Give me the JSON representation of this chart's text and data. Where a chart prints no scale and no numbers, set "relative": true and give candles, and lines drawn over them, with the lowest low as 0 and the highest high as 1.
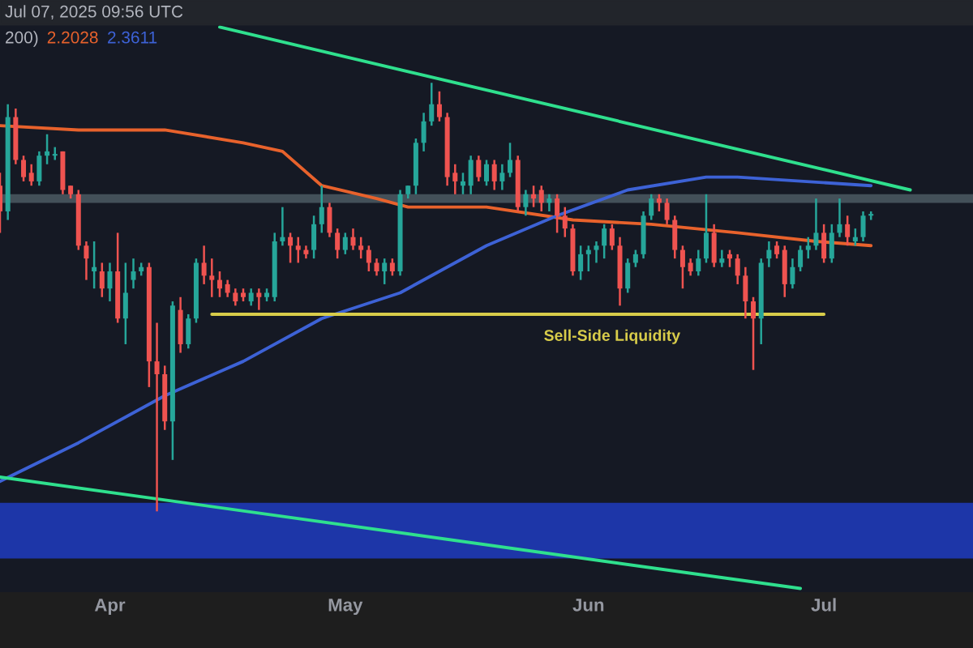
{
  "chart_data": {
    "type": "candlestick",
    "relative": true,
    "x": [
      "2025-03-18",
      "2025-03-19",
      "2025-03-20",
      "2025-03-21",
      "2025-03-22",
      "2025-03-23",
      "2025-03-24",
      "2025-03-25",
      "2025-03-26",
      "2025-03-27",
      "2025-03-28",
      "2025-03-29",
      "2025-03-30",
      "2025-03-31",
      "2025-04-01",
      "2025-04-02",
      "2025-04-03",
      "2025-04-04",
      "2025-04-05",
      "2025-04-06",
      "2025-04-07",
      "2025-04-08",
      "2025-04-09",
      "2025-04-10",
      "2025-04-11",
      "2025-04-12",
      "2025-04-13",
      "2025-04-14",
      "2025-04-15",
      "2025-04-16",
      "2025-04-17",
      "2025-04-18",
      "2025-04-19",
      "2025-04-20",
      "2025-04-21",
      "2025-04-22",
      "2025-04-23",
      "2025-04-24",
      "2025-04-25",
      "2025-04-26",
      "2025-04-27",
      "2025-04-28",
      "2025-04-29",
      "2025-04-30",
      "2025-05-01",
      "2025-05-02",
      "2025-05-03",
      "2025-05-04",
      "2025-05-05",
      "2025-05-06",
      "2025-05-07",
      "2025-05-08",
      "2025-05-09",
      "2025-05-10",
      "2025-05-11",
      "2025-05-12",
      "2025-05-13",
      "2025-05-14",
      "2025-05-15",
      "2025-05-16",
      "2025-05-17",
      "2025-05-18",
      "2025-05-19",
      "2025-05-20",
      "2025-05-21",
      "2025-05-22",
      "2025-05-23",
      "2025-05-24",
      "2025-05-25",
      "2025-05-26",
      "2025-05-27",
      "2025-05-28",
      "2025-05-29",
      "2025-05-30",
      "2025-05-31",
      "2025-06-01",
      "2025-06-02",
      "2025-06-03",
      "2025-06-04",
      "2025-06-05",
      "2025-06-06",
      "2025-06-07",
      "2025-06-08",
      "2025-06-09",
      "2025-06-10",
      "2025-06-11",
      "2025-06-12",
      "2025-06-13",
      "2025-06-14",
      "2025-06-15",
      "2025-06-16",
      "2025-06-17",
      "2025-06-18",
      "2025-06-19",
      "2025-06-20",
      "2025-06-21",
      "2025-06-22",
      "2025-06-23",
      "2025-06-24",
      "2025-06-25",
      "2025-06-26",
      "2025-06-27",
      "2025-06-28",
      "2025-06-29",
      "2025-06-30",
      "2025-07-01",
      "2025-07-02",
      "2025-07-03",
      "2025-07-04",
      "2025-07-05",
      "2025-07-06",
      "2025-07-07"
    ],
    "ohlc": [
      [
        0.76,
        0.79,
        0.65,
        0.7
      ],
      [
        0.7,
        0.95,
        0.68,
        0.92
      ],
      [
        0.92,
        0.94,
        0.81,
        0.82
      ],
      [
        0.82,
        0.83,
        0.77,
        0.78
      ],
      [
        0.79,
        0.81,
        0.76,
        0.77
      ],
      [
        0.77,
        0.84,
        0.76,
        0.83
      ],
      [
        0.83,
        0.88,
        0.81,
        0.84
      ],
      [
        0.83,
        0.85,
        0.82,
        0.83
      ],
      [
        0.84,
        0.84,
        0.74,
        0.75
      ],
      [
        0.76,
        0.76,
        0.73,
        0.74
      ],
      [
        0.74,
        0.75,
        0.61,
        0.62
      ],
      [
        0.62,
        0.63,
        0.54,
        0.59
      ],
      [
        0.56,
        0.63,
        0.52,
        0.57
      ],
      [
        0.56,
        0.58,
        0.5,
        0.52
      ],
      [
        0.52,
        0.58,
        0.49,
        0.56
      ],
      [
        0.56,
        0.65,
        0.44,
        0.45
      ],
      [
        0.45,
        0.58,
        0.39,
        0.51
      ],
      [
        0.54,
        0.59,
        0.52,
        0.56
      ],
      [
        0.56,
        0.58,
        0.55,
        0.57
      ],
      [
        0.57,
        0.58,
        0.29,
        0.35
      ],
      [
        0.35,
        0.44,
        0,
        0.32
      ],
      [
        0.32,
        0.34,
        0.19,
        0.21
      ],
      [
        0.21,
        0.49,
        0.12,
        0.48
      ],
      [
        0.47,
        0.5,
        0.37,
        0.39
      ],
      [
        0.39,
        0.46,
        0.38,
        0.45
      ],
      [
        0.45,
        0.59,
        0.44,
        0.58
      ],
      [
        0.58,
        0.62,
        0.53,
        0.55
      ],
      [
        0.55,
        0.59,
        0.5,
        0.54
      ],
      [
        0.54,
        0.56,
        0.5,
        0.52
      ],
      [
        0.53,
        0.54,
        0.5,
        0.51
      ],
      [
        0.51,
        0.52,
        0.48,
        0.49
      ],
      [
        0.51,
        0.52,
        0.49,
        0.5
      ],
      [
        0.49,
        0.52,
        0.48,
        0.51
      ],
      [
        0.51,
        0.52,
        0.47,
        0.5
      ],
      [
        0.5,
        0.52,
        0.49,
        0.51
      ],
      [
        0.5,
        0.65,
        0.49,
        0.63
      ],
      [
        0.63,
        0.71,
        0.62,
        0.64
      ],
      [
        0.64,
        0.65,
        0.58,
        0.62
      ],
      [
        0.62,
        0.64,
        0.58,
        0.61
      ],
      [
        0.61,
        0.62,
        0.59,
        0.6
      ],
      [
        0.61,
        0.69,
        0.59,
        0.67
      ],
      [
        0.67,
        0.76,
        0.65,
        0.71
      ],
      [
        0.71,
        0.72,
        0.64,
        0.65
      ],
      [
        0.65,
        0.66,
        0.59,
        0.61
      ],
      [
        0.61,
        0.65,
        0.6,
        0.64
      ],
      [
        0.64,
        0.66,
        0.61,
        0.62
      ],
      [
        0.62,
        0.64,
        0.59,
        0.61
      ],
      [
        0.61,
        0.62,
        0.56,
        0.58
      ],
      [
        0.58,
        0.59,
        0.55,
        0.56
      ],
      [
        0.56,
        0.59,
        0.53,
        0.58
      ],
      [
        0.58,
        0.59,
        0.55,
        0.56
      ],
      [
        0.56,
        0.75,
        0.55,
        0.74
      ],
      [
        0.74,
        0.76,
        0.73,
        0.76
      ],
      [
        0.76,
        0.87,
        0.74,
        0.86
      ],
      [
        0.86,
        0.93,
        0.84,
        0.91
      ],
      [
        0.91,
        1,
        0.9,
        0.95
      ],
      [
        0.95,
        0.98,
        0.91,
        0.92
      ],
      [
        0.92,
        0.93,
        0.76,
        0.78
      ],
      [
        0.79,
        0.81,
        0.74,
        0.77
      ],
      [
        0.76,
        0.79,
        0.74,
        0.77
      ],
      [
        0.76,
        0.83,
        0.74,
        0.82
      ],
      [
        0.82,
        0.83,
        0.77,
        0.78
      ],
      [
        0.77,
        0.82,
        0.76,
        0.81
      ],
      [
        0.81,
        0.82,
        0.75,
        0.77
      ],
      [
        0.77,
        0.81,
        0.75,
        0.79
      ],
      [
        0.79,
        0.86,
        0.78,
        0.82
      ],
      [
        0.82,
        0.83,
        0.7,
        0.71
      ],
      [
        0.71,
        0.75,
        0.69,
        0.74
      ],
      [
        0.74,
        0.76,
        0.71,
        0.73
      ],
      [
        0.75,
        0.76,
        0.7,
        0.72
      ],
      [
        0.72,
        0.74,
        0.7,
        0.73
      ],
      [
        0.73,
        0.74,
        0.65,
        0.69
      ],
      [
        0.69,
        0.71,
        0.64,
        0.66
      ],
      [
        0.66,
        0.67,
        0.55,
        0.56
      ],
      [
        0.56,
        0.62,
        0.54,
        0.6
      ],
      [
        0.6,
        0.62,
        0.56,
        0.61
      ],
      [
        0.61,
        0.63,
        0.58,
        0.62
      ],
      [
        0.62,
        0.67,
        0.59,
        0.66
      ],
      [
        0.66,
        0.67,
        0.61,
        0.62
      ],
      [
        0.62,
        0.64,
        0.48,
        0.52
      ],
      [
        0.52,
        0.59,
        0.51,
        0.58
      ],
      [
        0.58,
        0.61,
        0.57,
        0.6
      ],
      [
        0.6,
        0.7,
        0.59,
        0.69
      ],
      [
        0.69,
        0.74,
        0.68,
        0.73
      ],
      [
        0.73,
        0.74,
        0.7,
        0.72
      ],
      [
        0.72,
        0.73,
        0.67,
        0.68
      ],
      [
        0.68,
        0.69,
        0.59,
        0.61
      ],
      [
        0.61,
        0.62,
        0.52,
        0.57
      ],
      [
        0.58,
        0.59,
        0.55,
        0.56
      ],
      [
        0.56,
        0.61,
        0.55,
        0.59
      ],
      [
        0.59,
        0.74,
        0.58,
        0.65
      ],
      [
        0.65,
        0.67,
        0.57,
        0.58
      ],
      [
        0.58,
        0.61,
        0.57,
        0.59
      ],
      [
        0.6,
        0.61,
        0.57,
        0.59
      ],
      [
        0.59,
        0.6,
        0.53,
        0.55
      ],
      [
        0.55,
        0.57,
        0.45,
        0.49
      ],
      [
        0.49,
        0.5,
        0.33,
        0.45
      ],
      [
        0.45,
        0.59,
        0.39,
        0.58
      ],
      [
        0.59,
        0.63,
        0.57,
        0.61
      ],
      [
        0.62,
        0.63,
        0.59,
        0.6
      ],
      [
        0.61,
        0.62,
        0.5,
        0.53
      ],
      [
        0.53,
        0.59,
        0.52,
        0.57
      ],
      [
        0.57,
        0.62,
        0.56,
        0.61
      ],
      [
        0.61,
        0.64,
        0.59,
        0.62
      ],
      [
        0.62,
        0.73,
        0.61,
        0.65
      ],
      [
        0.65,
        0.67,
        0.58,
        0.59
      ],
      [
        0.59,
        0.67,
        0.58,
        0.65
      ],
      [
        0.65,
        0.73,
        0.64,
        0.67
      ],
      [
        0.67,
        0.69,
        0.62,
        0.64
      ],
      [
        0.63,
        0.66,
        0.62,
        0.64
      ],
      [
        0.64,
        0.7,
        0.63,
        0.69
      ],
      [
        0.69,
        0.7,
        0.68,
        0.69
      ]
    ],
    "series": [
      {
        "type": "line",
        "color": "#e8622c",
        "x": [
          "2025-03-18",
          "2025-03-28",
          "2025-04-08",
          "2025-04-18",
          "2025-04-23",
          "2025-04-28",
          "2025-05-05",
          "2025-05-09",
          "2025-05-19",
          "2025-05-30",
          "2025-06-09",
          "2025-06-20",
          "2025-06-30",
          "2025-07-07"
        ],
        "values": [
          0.9,
          0.89,
          0.89,
          0.86,
          0.84,
          0.76,
          0.73,
          0.71,
          0.71,
          0.68,
          0.67,
          0.65,
          0.63,
          0.62
        ]
      },
      {
        "type": "line",
        "color": "#3d62d6",
        "x": [
          "2025-03-18",
          "2025-03-28",
          "2025-04-08",
          "2025-04-18",
          "2025-04-28",
          "2025-05-08",
          "2025-05-19",
          "2025-05-28",
          "2025-06-06",
          "2025-06-16",
          "2025-06-20",
          "2025-07-07"
        ],
        "values": [
          0.07,
          0.16,
          0.27,
          0.35,
          0.45,
          0.51,
          0.62,
          0.69,
          0.75,
          0.78,
          0.78,
          0.76
        ]
      },
      {
        "type": "line",
        "color": "#2fe08e",
        "x": [
          "2025-04-15",
          "2025-07-12"
        ],
        "values": [
          1.13,
          0.75
        ]
      },
      {
        "type": "line",
        "color": "#2fe08e",
        "x": [
          "2025-03-18",
          "2025-06-28"
        ],
        "values": [
          0.08,
          -0.18
        ]
      },
      {
        "type": "line",
        "color": "#d8cc4a",
        "x": [
          "2025-04-14",
          "2025-07-01"
        ],
        "values": [
          0.46,
          0.46
        ]
      }
    ],
    "bands": [
      {
        "axis": "y",
        "from": 0.72,
        "to": 0.74,
        "color": "#4b5a63"
      },
      {
        "axis": "y",
        "from": -0.11,
        "to": 0.02,
        "color": "#1e3cc0"
      }
    ],
    "annotations": [
      "Jul 07, 2025 09:56 UTC",
      "200)",
      "2.2028",
      "2.3611",
      "Sell-Side Liquidity"
    ],
    "xlim": [
      "2025-03-18",
      "2025-07-20"
    ],
    "xticks": [
      {
        "value": "2025-04-01",
        "label": "Apr"
      },
      {
        "value": "2025-05-01",
        "label": "May"
      },
      {
        "value": "2025-06-01",
        "label": "Jun"
      },
      {
        "value": "2025-07-01",
        "label": "Jul"
      }
    ],
    "tick_labels": "x"
  }
}
